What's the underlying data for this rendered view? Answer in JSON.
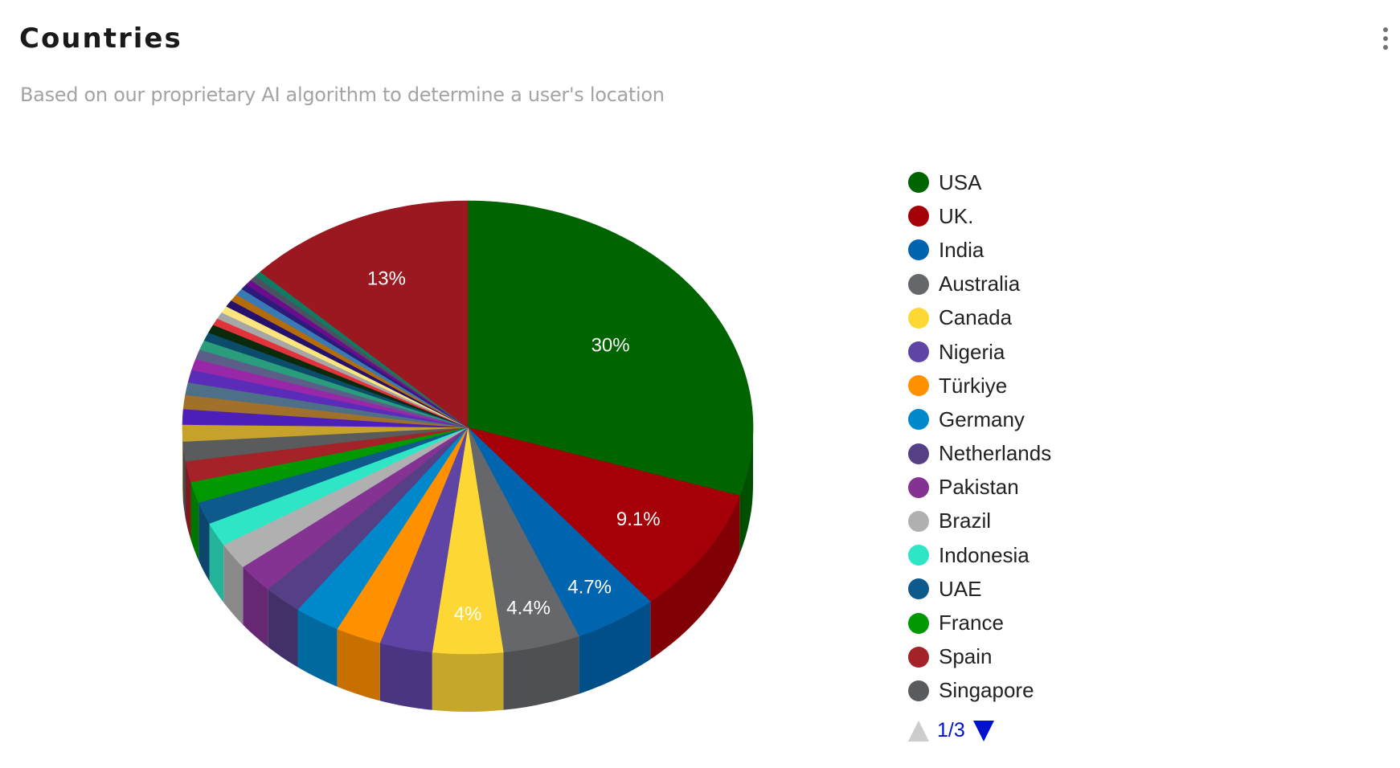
{
  "header": {
    "title": "Countries",
    "subtitle": "Based on our proprietary AI algorithm to determine a user's location",
    "menu_icon": "kebab-vertical-icon"
  },
  "legend": {
    "items": [
      {
        "label": "USA",
        "color": "#006400"
      },
      {
        "label": "UK.",
        "color": "#a50008"
      },
      {
        "label": "India",
        "color": "#0065ae"
      },
      {
        "label": "Australia",
        "color": "#65676a"
      },
      {
        "label": "Canada",
        "color": "#fdd835"
      },
      {
        "label": "Nigeria",
        "color": "#5e44a5"
      },
      {
        "label": "Türkiye",
        "color": "#ff9000"
      },
      {
        "label": "Germany",
        "color": "#0088cc"
      },
      {
        "label": "Netherlands",
        "color": "#553f85"
      },
      {
        "label": "Pakistan",
        "color": "#843393"
      },
      {
        "label": "Brazil",
        "color": "#b0b0b0"
      },
      {
        "label": "Indonesia",
        "color": "#2ee6c6"
      },
      {
        "label": "UAE",
        "color": "#0f5a8c"
      },
      {
        "label": "France",
        "color": "#019801"
      },
      {
        "label": "Spain",
        "color": "#a32329"
      },
      {
        "label": "Singapore",
        "color": "#5a5b5d"
      }
    ],
    "pager": {
      "text": "1/3",
      "prev_icon": "triangle-up-icon",
      "next_icon": "triangle-down-icon",
      "prev_color": "#cccccc",
      "next_color": "#0011cc"
    }
  },
  "chart_data": {
    "type": "pie",
    "style": "3d",
    "title": "Countries",
    "subtitle": "Based on our proprietary AI algorithm to determine a user's location",
    "legend_position": "right",
    "legend_page": "1/3",
    "slices": [
      {
        "label": "USA",
        "value": 30,
        "color": "#006400",
        "show_label": true
      },
      {
        "label": "UK.",
        "value": 9.1,
        "color": "#a50008",
        "show_label": true
      },
      {
        "label": "India",
        "value": 4.7,
        "color": "#0065ae",
        "show_label": true
      },
      {
        "label": "Australia",
        "value": 4.4,
        "color": "#65676a",
        "show_label": true
      },
      {
        "label": "Canada",
        "value": 4,
        "color": "#fdd835",
        "show_label": true
      },
      {
        "label": "Nigeria",
        "value": 3.0,
        "color": "#5e44a5"
      },
      {
        "label": "Türkiye",
        "value": 2.6,
        "color": "#ff9000"
      },
      {
        "label": "Germany",
        "value": 2.6,
        "color": "#0088cc"
      },
      {
        "label": "Netherlands",
        "value": 2.2,
        "color": "#553f85"
      },
      {
        "label": "Pakistan",
        "value": 2.1,
        "color": "#843393"
      },
      {
        "label": "Brazil",
        "value": 1.9,
        "color": "#b0b0b0"
      },
      {
        "label": "Indonesia",
        "value": 1.7,
        "color": "#2ee6c6"
      },
      {
        "label": "UAE",
        "value": 1.6,
        "color": "#0f5a8c"
      },
      {
        "label": "France",
        "value": 1.5,
        "color": "#019801"
      },
      {
        "label": "Spain",
        "value": 1.5,
        "color": "#a32329"
      },
      {
        "label": "Singapore",
        "value": 1.4,
        "color": "#5a5b5d"
      },
      {
        "label": "",
        "value": 1.2,
        "color": "#c6a22c"
      },
      {
        "label": "",
        "value": 1.1,
        "color": "#4c1fba"
      },
      {
        "label": "",
        "value": 1.0,
        "color": "#a1702b"
      },
      {
        "label": "",
        "value": 0.9,
        "color": "#4d6f88"
      },
      {
        "label": "",
        "value": 0.9,
        "color": "#5a2cb8"
      },
      {
        "label": "",
        "value": 0.8,
        "color": "#9828a8"
      },
      {
        "label": "",
        "value": 0.7,
        "color": "#5b5f87"
      },
      {
        "label": "",
        "value": 0.7,
        "color": "#2a9d7c"
      },
      {
        "label": "",
        "value": 0.6,
        "color": "#0b4c6b"
      },
      {
        "label": "",
        "value": 0.6,
        "color": "#0b2a0c"
      },
      {
        "label": "",
        "value": 0.5,
        "color": "#e2323b"
      },
      {
        "label": "",
        "value": 0.5,
        "color": "#a6a6a6"
      },
      {
        "label": "",
        "value": 0.5,
        "color": "#fde57e"
      },
      {
        "label": "",
        "value": 0.5,
        "color": "#26106d"
      },
      {
        "label": "",
        "value": 0.5,
        "color": "#b46c0b"
      },
      {
        "label": "",
        "value": 0.5,
        "color": "#3a79b3"
      },
      {
        "label": "",
        "value": 0.4,
        "color": "#2b1b7b"
      },
      {
        "label": "",
        "value": 0.4,
        "color": "#6b0c8c"
      },
      {
        "label": "",
        "value": 0.4,
        "color": "#4b5162"
      },
      {
        "label": "",
        "value": 0.4,
        "color": "#137a62"
      },
      {
        "label": "",
        "value": 13,
        "color": "#9b1820",
        "show_label": true
      }
    ],
    "labels_shown": [
      "30%",
      "9.1%",
      "4.7%",
      "4.4%",
      "4%",
      "13%"
    ]
  }
}
